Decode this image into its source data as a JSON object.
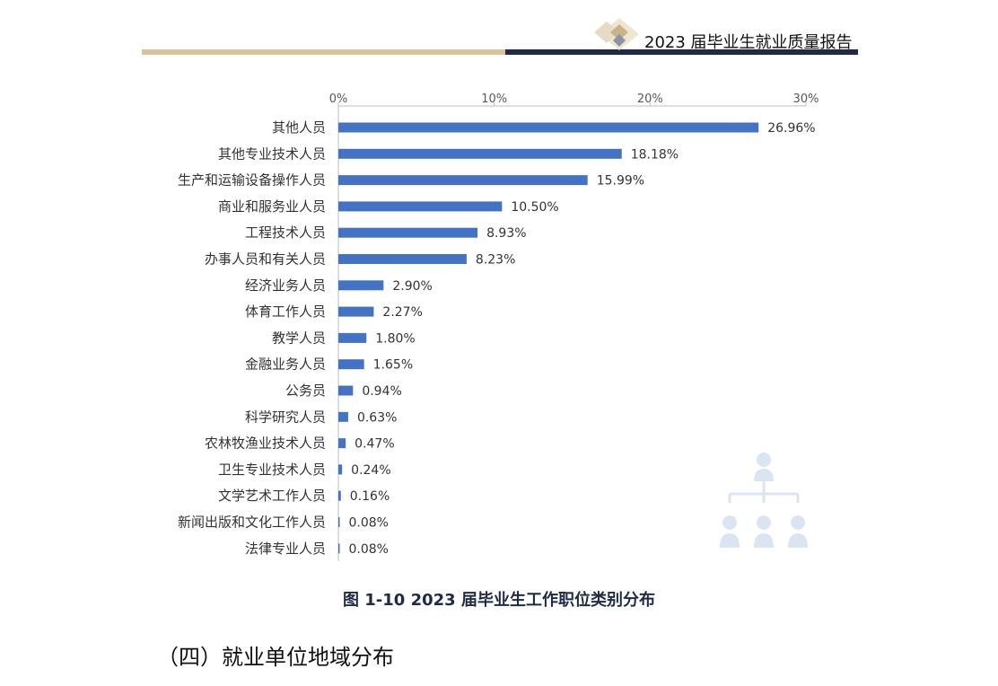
{
  "header": {
    "report_title": "2023 届毕业生就业质量报告"
  },
  "figure": {
    "caption": "图 1-10  2023 届毕业生工作职位类别分布"
  },
  "section": {
    "title": "（四）就业单位地域分布"
  },
  "colors": {
    "bar": "#4472c4",
    "header_gold": "#d8c39a",
    "header_navy": "#1f2a44",
    "watermark": "#dbe5f1"
  },
  "chart_data": {
    "type": "bar",
    "orientation": "horizontal",
    "axis_position": "top",
    "xlim": [
      0,
      30
    ],
    "ticks": [
      "0%",
      "10%",
      "20%",
      "30%"
    ],
    "tick_values": [
      0,
      10,
      20,
      30
    ],
    "grid": false,
    "categories": [
      "其他人员",
      "其他专业技术人员",
      "生产和运输设备操作人员",
      "商业和服务业人员",
      "工程技术人员",
      "办事人员和有关人员",
      "经济业务人员",
      "体育工作人员",
      "教学人员",
      "金融业务人员",
      "公务员",
      "科学研究人员",
      "农林牧渔业技术人员",
      "卫生专业技术人员",
      "文学艺术工作人员",
      "新闻出版和文化工作人员",
      "法律专业人员"
    ],
    "values": [
      26.96,
      18.18,
      15.99,
      10.5,
      8.93,
      8.23,
      2.9,
      2.27,
      1.8,
      1.65,
      0.94,
      0.63,
      0.47,
      0.24,
      0.16,
      0.08,
      0.08
    ],
    "labels": [
      "26.96%",
      "18.18%",
      "15.99%",
      "10.50%",
      "8.93%",
      "8.23%",
      "2.90%",
      "2.27%",
      "1.80%",
      "1.65%",
      "0.94%",
      "0.63%",
      "0.47%",
      "0.24%",
      "0.16%",
      "0.08%",
      "0.08%"
    ]
  }
}
